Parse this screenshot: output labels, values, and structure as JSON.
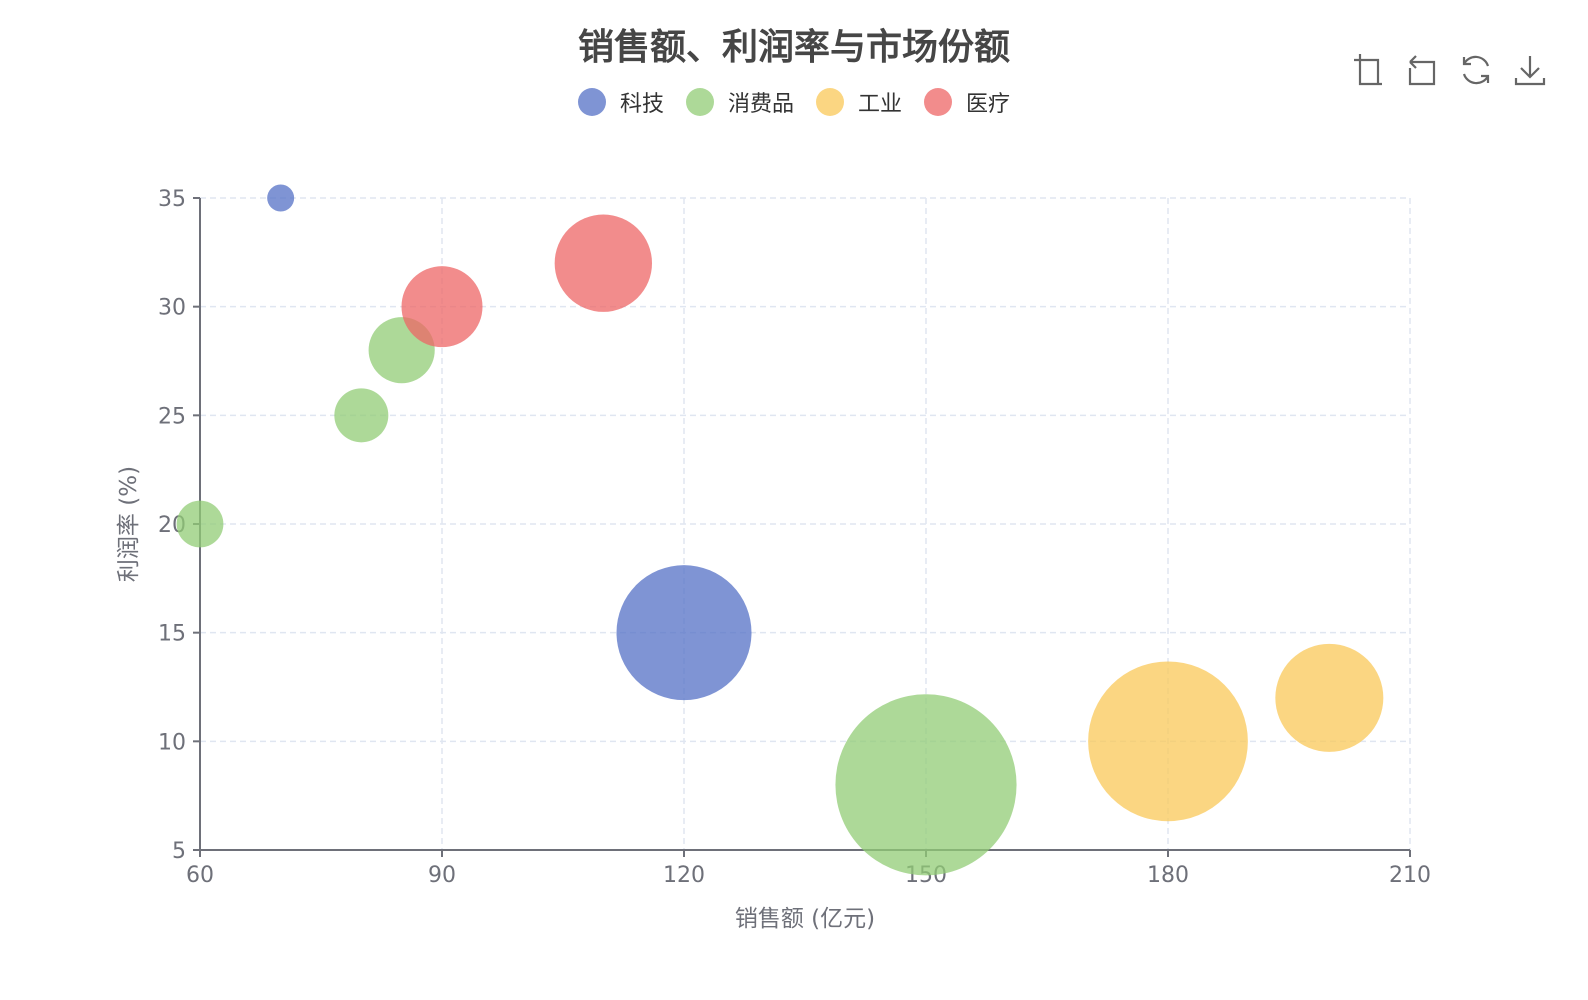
{
  "toolbox": {
    "icons": [
      "zoom-icon",
      "zoom-reset-icon",
      "restore-icon",
      "save-image-icon"
    ]
  },
  "chart_data": {
    "type": "scatter",
    "title": "销售额、利润率与市场份额",
    "xlabel": "销售额 (亿元)",
    "ylabel": "利润率 (%)",
    "xlim": [
      60,
      210
    ],
    "ylim": [
      5,
      35
    ],
    "xticks": [
      "60",
      "90",
      "120",
      "150",
      "180",
      "210"
    ],
    "yticks": [
      "5",
      "10",
      "15",
      "20",
      "25",
      "30",
      "35"
    ],
    "grid": true,
    "grid_style": "dashed",
    "legend_position": "top-center",
    "series": [
      {
        "name": "科技",
        "color": "#5470c6",
        "points": [
          {
            "x": 70,
            "y": 35,
            "size": 1
          },
          {
            "x": 120,
            "y": 15,
            "size": 25
          }
        ]
      },
      {
        "name": "消费品",
        "color": "#91cc75",
        "points": [
          {
            "x": 60,
            "y": 20,
            "size": 3
          },
          {
            "x": 80,
            "y": 25,
            "size": 4
          },
          {
            "x": 85,
            "y": 28,
            "size": 6
          },
          {
            "x": 150,
            "y": 8,
            "size": 45
          }
        ]
      },
      {
        "name": "工业",
        "color": "#fac858",
        "points": [
          {
            "x": 180,
            "y": 10,
            "size": 35
          },
          {
            "x": 200,
            "y": 12,
            "size": 16
          }
        ]
      },
      {
        "name": "医疗",
        "color": "#ee6666",
        "points": [
          {
            "x": 90,
            "y": 30,
            "size": 9
          },
          {
            "x": 110,
            "y": 32,
            "size": 13
          }
        ]
      }
    ]
  }
}
